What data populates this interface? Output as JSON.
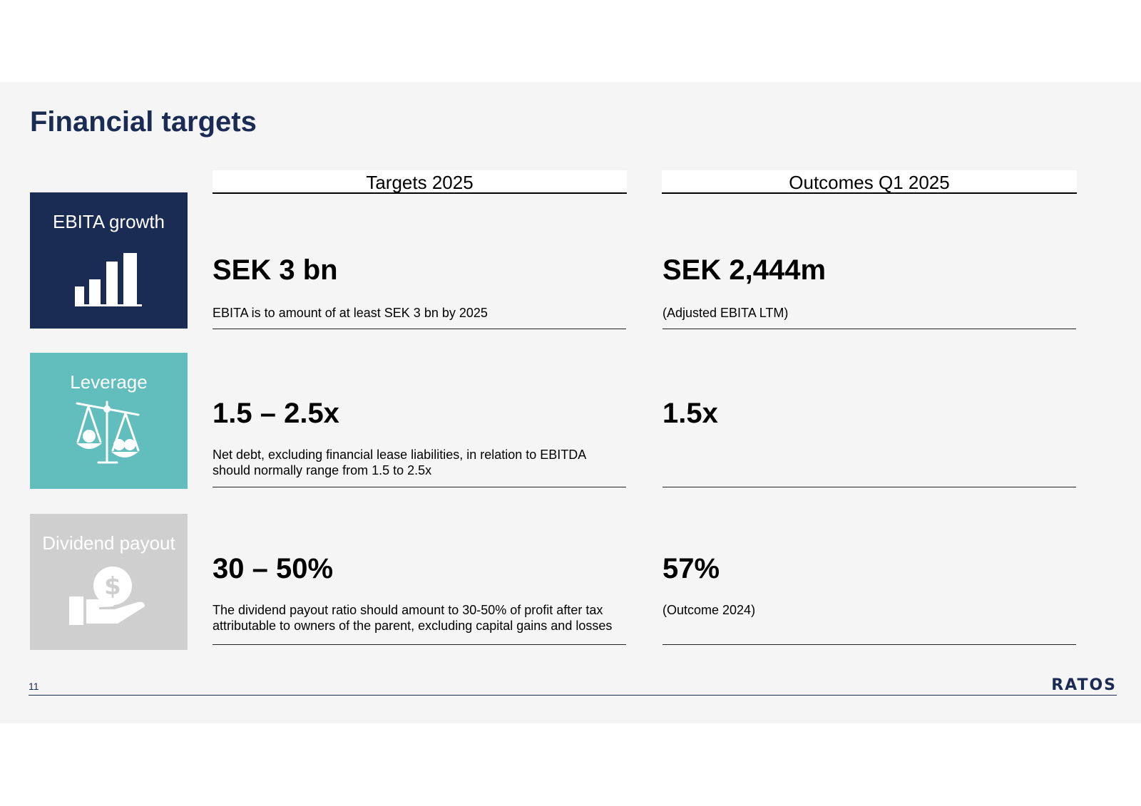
{
  "slide": {
    "title": "Financial targets",
    "page_number": "11",
    "logo": "RATOS"
  },
  "columns": {
    "targets_header": "Targets 2025",
    "outcomes_header": "Outcomes Q1 2025"
  },
  "rows": [
    {
      "label": "EBITA growth",
      "icon": "bar-chart-icon",
      "target_value": "SEK 3 bn",
      "target_desc": "EBITA is to amount of at least SEK 3 bn by 2025",
      "outcome_value": "SEK 2,444m",
      "outcome_desc": "(Adjusted EBITA LTM)",
      "color": "#1a2b54"
    },
    {
      "label": "Leverage",
      "icon": "scale-icon",
      "target_value": "1.5 – 2.5x",
      "target_desc": "Net debt, excluding financial lease liabilities, in relation to EBITDA should normally range from 1.5 to 2.5x",
      "outcome_value": "1.5x",
      "outcome_desc": "",
      "color": "#62bdbd"
    },
    {
      "label": "Dividend payout",
      "icon": "dollar-hand-icon",
      "target_value": "30 – 50%",
      "target_desc": "The dividend payout ratio should amount to 30-50% of profit after tax attributable to owners of the parent, excluding capital gains and losses",
      "outcome_value": "57%",
      "outcome_desc": "(Outcome 2024)",
      "color": "#cfcfcf"
    }
  ]
}
